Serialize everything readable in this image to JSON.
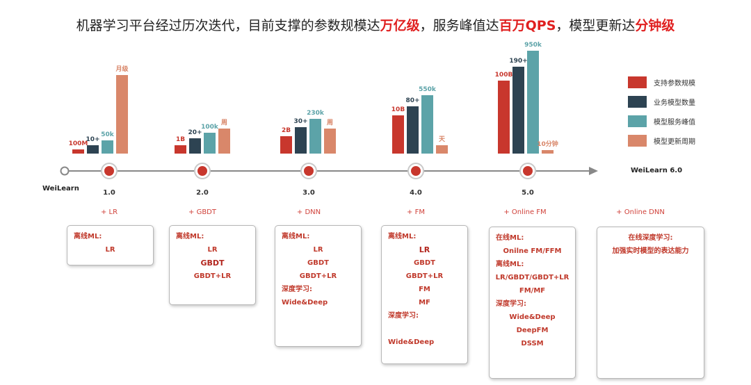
{
  "headline": {
    "parts": [
      {
        "text": "机器学习平台经过历次迭代，目前支撑的参数规模达",
        "hl": false
      },
      {
        "text": "万亿级",
        "hl": true
      },
      {
        "text": "，服务峰值达",
        "hl": false
      },
      {
        "text": "百万QPS",
        "hl": true
      },
      {
        "text": "，模型更新达",
        "hl": false
      },
      {
        "text": "分钟级",
        "hl": true
      }
    ]
  },
  "legend": [
    {
      "label": "支持参数规模",
      "color": "#c8372d"
    },
    {
      "label": "业务模型数量",
      "color": "#2d4352"
    },
    {
      "label": "模型服务峰值",
      "color": "#5ca3a8"
    },
    {
      "label": "模型更新周期",
      "color": "#d9876a"
    }
  ],
  "chart_data": {
    "type": "bar",
    "title": "机器学习平台经过历次迭代，目前支撑的参数规模达万亿级，服务峰值达百万QPS，模型更新达分钟级",
    "categories": [
      "1.0",
      "2.0",
      "3.0",
      "4.0",
      "5.0"
    ],
    "series": [
      {
        "name": "支持参数规模",
        "color": "#c8372d",
        "labels": [
          "100M",
          "1B",
          "2B",
          "10B",
          "100B"
        ],
        "values": [
          6,
          12,
          25,
          55,
          105
        ]
      },
      {
        "name": "业务模型数量",
        "color": "#2d4352",
        "labels": [
          "10+",
          "20+",
          "30+",
          "80+",
          "190+"
        ],
        "values": [
          12,
          22,
          38,
          68,
          125
        ]
      },
      {
        "name": "模型服务峰值",
        "color": "#5ca3a8",
        "labels": [
          "50k",
          "100k",
          "230k",
          "550k",
          "950k"
        ],
        "values": [
          19,
          30,
          50,
          84,
          148
        ]
      },
      {
        "name": "模型更新周期",
        "color": "#d9876a",
        "labels": [
          "月级",
          "周",
          "周",
          "天",
          "10分钟"
        ],
        "values": [
          113,
          36,
          36,
          12,
          5
        ]
      }
    ],
    "timeline": {
      "start_label": "WeiLearn",
      "end_label": "WeiLearn 6.0",
      "versions": [
        "1.0",
        "2.0",
        "3.0",
        "4.0",
        "5.0"
      ],
      "algorithms": [
        "+ LR",
        "+ GBDT",
        "+ DNN",
        "+ FM",
        "+ Online FM",
        "+ Online DNN"
      ]
    }
  },
  "boxes": [
    [
      {
        "t": "离线ML:",
        "k": "hd"
      },
      {
        "t": "LR",
        "k": "it"
      }
    ],
    [
      {
        "t": "离线ML:",
        "k": "hd"
      },
      {
        "t": "LR",
        "k": "it"
      },
      {
        "t": "GBDT",
        "k": "it strong"
      },
      {
        "t": "GBDT+LR",
        "k": "it"
      }
    ],
    [
      {
        "t": "离线ML:",
        "k": "hd"
      },
      {
        "t": "LR",
        "k": "it"
      },
      {
        "t": "GBDT",
        "k": "it"
      },
      {
        "t": "GBDT+LR",
        "k": "it"
      },
      {
        "t": "深度学习:",
        "k": "hd"
      },
      {
        "t": "Wide&Deep",
        "k": "hd"
      }
    ],
    [
      {
        "t": "离线ML:",
        "k": "hd"
      },
      {
        "t": "LR",
        "k": "it strong"
      },
      {
        "t": "GBDT",
        "k": "it"
      },
      {
        "t": "GBDT+LR",
        "k": "it"
      },
      {
        "t": "FM",
        "k": "it"
      },
      {
        "t": "MF",
        "k": "it"
      },
      {
        "t": "深度学习:",
        "k": "hd"
      },
      {
        "t": "",
        "k": "it"
      },
      {
        "t": "Wide&Deep",
        "k": "hd"
      }
    ],
    [
      {
        "t": "在线ML:",
        "k": "hd"
      },
      {
        "t": "Onilne FM/FFM",
        "k": "it"
      },
      {
        "t": "离线ML:",
        "k": "hd"
      },
      {
        "t": "LR/GBDT/GBDT+LR",
        "k": "it"
      },
      {
        "t": "FM/MF",
        "k": "it"
      },
      {
        "t": "深度学习:",
        "k": "hd"
      },
      {
        "t": "Wide&Deep",
        "k": "it"
      },
      {
        "t": "DeepFM",
        "k": "it"
      },
      {
        "t": "DSSM",
        "k": "it"
      }
    ],
    [
      {
        "t": "在线深度学习:",
        "k": "it"
      },
      {
        "t": "加强实时模型的表达能力",
        "k": "it"
      }
    ]
  ]
}
